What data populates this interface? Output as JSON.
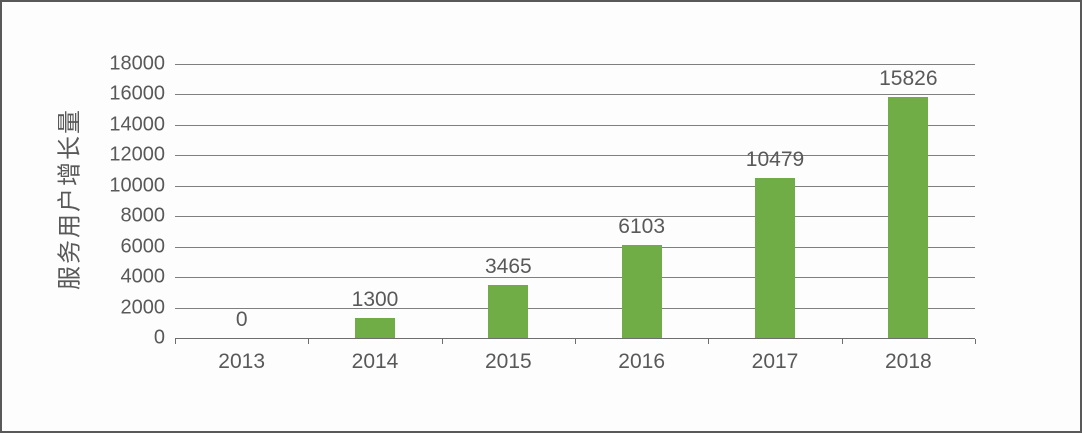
{
  "window": {
    "background_color": "#fdfdfd",
    "border_color": "#595959"
  },
  "chart_data": {
    "type": "bar",
    "title": "",
    "categories": [
      "2013",
      "2014",
      "2015",
      "2016",
      "2017",
      "2018"
    ],
    "values": [
      0,
      1300,
      3465,
      6103,
      10479,
      15826
    ],
    "data_labels": [
      "0",
      "1300",
      "3465",
      "6103",
      "10479",
      "15826"
    ],
    "xlabel": "",
    "ylabel": "服务用户增长量",
    "ylim": [
      0,
      18000
    ],
    "ytick_step": 2000,
    "ytick_labels": [
      "0",
      "2000",
      "4000",
      "6000",
      "8000",
      "10000",
      "12000",
      "14000",
      "16000",
      "18000"
    ],
    "grid": true,
    "legend_position": "none",
    "bar_color": "#70AD47",
    "text_color": "#595959",
    "gridline_color": "#7f7f7f"
  }
}
